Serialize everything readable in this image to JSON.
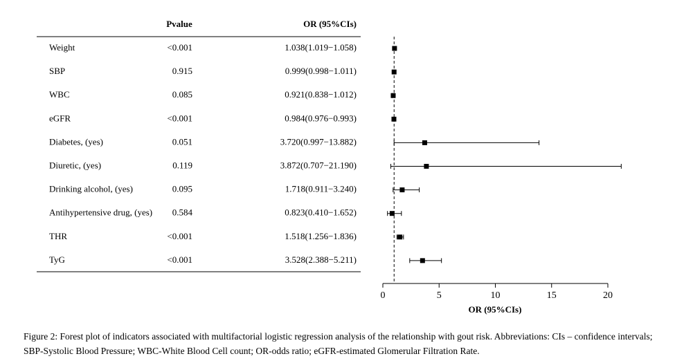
{
  "chart_data": {
    "type": "forest",
    "headers": {
      "pvalue": "Pvalue",
      "or": "OR (95%CIs)"
    },
    "categories": [
      "Weight",
      "SBP",
      "WBC",
      "eGFR",
      "Diabetes, (yes)",
      "Diuretic, (yes)",
      "Drinking alcohol, (yes)",
      "Antihypertensive drug, (yes)",
      "THR",
      "TyG"
    ],
    "pvalues": [
      "<0.001",
      "0.915",
      "0.085",
      "<0.001",
      "0.051",
      "0.119",
      "0.095",
      "0.584",
      "<0.001",
      "<0.001"
    ],
    "values": [
      1.038,
      0.999,
      0.921,
      0.984,
      3.72,
      3.872,
      1.718,
      0.823,
      1.518,
      3.528
    ],
    "lower": [
      1.019,
      0.998,
      0.838,
      0.976,
      0.997,
      0.707,
      0.911,
      0.41,
      1.256,
      2.388
    ],
    "upper": [
      1.058,
      1.011,
      1.012,
      0.993,
      13.882,
      21.19,
      3.24,
      1.652,
      1.836,
      5.211
    ],
    "value_labels": [
      "1.038(1.019−1.058)",
      "0.999(0.998−1.011)",
      "0.921(0.838−1.012)",
      "0.984(0.976−0.993)",
      "3.720(0.997−13.882)",
      "3.872(0.707−21.190)",
      "1.718(0.911−3.240)",
      "0.823(0.410−1.652)",
      "1.518(1.256−1.836)",
      "3.528(2.388−5.211)"
    ],
    "reference_line": 1,
    "xlim": [
      0,
      20
    ],
    "xticks": [
      0,
      5,
      10,
      15,
      20
    ],
    "xlabel": "OR (95%CIs)",
    "color": "#000000",
    "caption": "Figure 2: Forest plot of indicators associated with multifactorial logistic regression analysis of the relationship with gout risk. Abbreviations: CIs – confidence intervals; SBP-Systolic Blood Pressure; WBC-White Blood Cell count; OR-odds ratio; eGFR-estimated Glomerular Filtration Rate."
  }
}
